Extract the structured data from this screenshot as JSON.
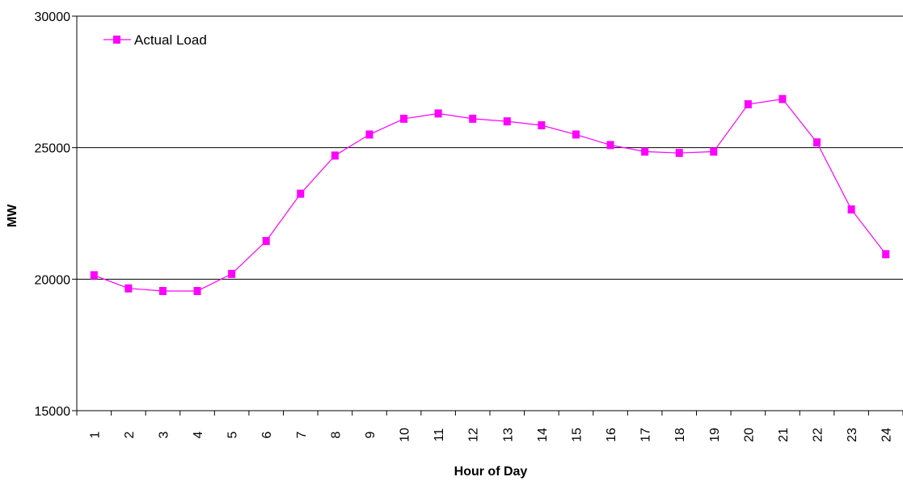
{
  "chart_data": {
    "type": "line",
    "title": "",
    "xlabel": "Hour of Day",
    "ylabel": "MW",
    "categories": [
      "1",
      "2",
      "3",
      "4",
      "5",
      "6",
      "7",
      "8",
      "9",
      "10",
      "11",
      "12",
      "13",
      "14",
      "15",
      "16",
      "17",
      "18",
      "19",
      "20",
      "21",
      "22",
      "23",
      "24"
    ],
    "series": [
      {
        "name": "Actual Load",
        "color": "#ff00ff",
        "marker": "square",
        "values": [
          20150,
          19650,
          19550,
          19550,
          20200,
          21450,
          23250,
          24700,
          25500,
          26100,
          26300,
          26100,
          26000,
          25850,
          25500,
          25100,
          24850,
          24800,
          24850,
          26650,
          26850,
          25200,
          22650,
          20950
        ]
      }
    ],
    "ylim": [
      15000,
      30000
    ],
    "yticks": [
      15000,
      20000,
      25000,
      30000
    ],
    "ytick_labels": [
      "15000",
      "20000",
      "25000",
      "30000"
    ],
    "gridlines": "horizontal",
    "legend_position": "top-left",
    "x_tick_rotation": "vertical"
  }
}
